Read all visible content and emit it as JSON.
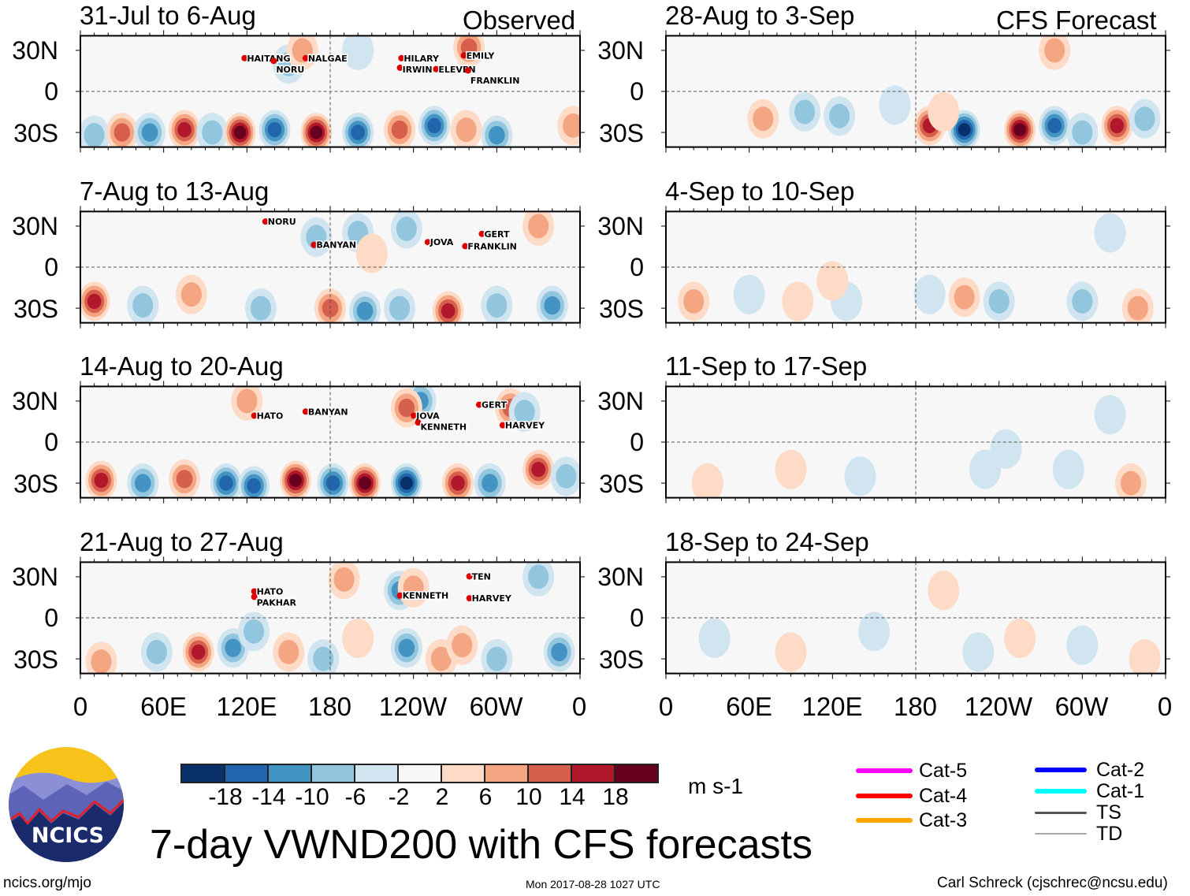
{
  "headers": {
    "observed": "Observed",
    "forecast": "CFS Forecast"
  },
  "lat_labels": [
    "30N",
    "0",
    "30S"
  ],
  "lon_labels": [
    "0",
    "60E",
    "120E",
    "180",
    "120W",
    "60W",
    "0"
  ],
  "panels": [
    {
      "title": "31-Jul to 6-Aug",
      "features": [
        [
          10,
          -32,
          -8
        ],
        [
          30,
          -30,
          12
        ],
        [
          50,
          -30,
          -14
        ],
        [
          75,
          -28,
          16
        ],
        [
          95,
          -30,
          -10
        ],
        [
          115,
          -30,
          20
        ],
        [
          140,
          -28,
          -18
        ],
        [
          170,
          -30,
          19
        ],
        [
          200,
          -30,
          -16
        ],
        [
          230,
          -28,
          14
        ],
        [
          255,
          -25,
          -16
        ],
        [
          278,
          -28,
          10
        ],
        [
          300,
          -32,
          -12
        ],
        [
          150,
          20,
          -8
        ],
        [
          160,
          30,
          10
        ],
        [
          280,
          32,
          14
        ],
        [
          200,
          30,
          -6
        ],
        [
          355,
          -25,
          10
        ]
      ],
      "storms": [
        {
          "name": "HAITANG",
          "lon": 120,
          "lat": 22
        },
        {
          "name": "NORU",
          "lon": 141,
          "lat": 20
        },
        {
          "name": "NALGAE",
          "lon": 164,
          "lat": 22
        },
        {
          "name": "HILARY",
          "lon": 233,
          "lat": 22
        },
        {
          "name": "IRWIN",
          "lon": 232,
          "lat": 15
        },
        {
          "name": "ELEVEN",
          "lon": 258,
          "lat": 14
        },
        {
          "name": "EMILY",
          "lon": 278,
          "lat": 24
        },
        {
          "name": "FRANKLIN",
          "lon": 281,
          "lat": 13
        }
      ]
    },
    {
      "title": "7-Aug to 13-Aug",
      "features": [
        [
          10,
          -25,
          16
        ],
        [
          45,
          -28,
          -10
        ],
        [
          80,
          -20,
          8
        ],
        [
          130,
          -30,
          -8
        ],
        [
          180,
          -30,
          12
        ],
        [
          205,
          -32,
          -14
        ],
        [
          230,
          -30,
          -10
        ],
        [
          265,
          -32,
          18
        ],
        [
          300,
          -28,
          -10
        ],
        [
          340,
          -28,
          -14
        ],
        [
          200,
          25,
          -10
        ],
        [
          235,
          28,
          -8
        ],
        [
          330,
          30,
          10
        ],
        [
          170,
          22,
          -10
        ],
        [
          210,
          10,
          6
        ]
      ],
      "storms": [
        {
          "name": "NORU",
          "lon": 135,
          "lat": 31
        },
        {
          "name": "BANYAN",
          "lon": 170,
          "lat": 14
        },
        {
          "name": "JOVA",
          "lon": 252,
          "lat": 16
        },
        {
          "name": "GERT",
          "lon": 291,
          "lat": 22
        },
        {
          "name": "FRANKLIN",
          "lon": 279,
          "lat": 13
        }
      ]
    },
    {
      "title": "14-Aug to 20-Aug",
      "features": [
        [
          15,
          -28,
          18
        ],
        [
          45,
          -30,
          -14
        ],
        [
          75,
          -27,
          14
        ],
        [
          105,
          -30,
          -18
        ],
        [
          125,
          -32,
          -16
        ],
        [
          155,
          -28,
          20
        ],
        [
          182,
          -30,
          -16
        ],
        [
          205,
          -30,
          19
        ],
        [
          235,
          -30,
          -20
        ],
        [
          272,
          -30,
          18
        ],
        [
          295,
          -30,
          -14
        ],
        [
          330,
          -20,
          16
        ],
        [
          350,
          -25,
          -10
        ],
        [
          245,
          30,
          -14
        ],
        [
          235,
          25,
          14
        ],
        [
          310,
          25,
          14
        ],
        [
          320,
          22,
          -10
        ],
        [
          120,
          30,
          8
        ]
      ],
      "storms": [
        {
          "name": "HATO",
          "lon": 127,
          "lat": 17
        },
        {
          "name": "BANYAN",
          "lon": 164,
          "lat": 20
        },
        {
          "name": "JOVA",
          "lon": 242,
          "lat": 17
        },
        {
          "name": "KENNETH",
          "lon": 245,
          "lat": 12
        },
        {
          "name": "GERT",
          "lon": 289,
          "lat": 25
        },
        {
          "name": "HARVEY",
          "lon": 306,
          "lat": 10
        }
      ]
    },
    {
      "title": "21-Aug to 27-Aug",
      "features": [
        [
          15,
          -32,
          10
        ],
        [
          55,
          -25,
          -10
        ],
        [
          85,
          -25,
          18
        ],
        [
          110,
          -22,
          -12
        ],
        [
          125,
          -10,
          -8
        ],
        [
          150,
          -25,
          8
        ],
        [
          175,
          -30,
          -8
        ],
        [
          200,
          -15,
          6
        ],
        [
          235,
          -22,
          -14
        ],
        [
          260,
          -30,
          10
        ],
        [
          300,
          -30,
          -10
        ],
        [
          345,
          -25,
          -14
        ],
        [
          190,
          28,
          10
        ],
        [
          230,
          20,
          -14
        ],
        [
          240,
          22,
          8
        ],
        [
          330,
          30,
          -10
        ],
        [
          275,
          -20,
          10
        ]
      ],
      "storms": [
        {
          "name": "HATO",
          "lon": 127,
          "lat": 17
        },
        {
          "name": "PAKHAR",
          "lon": 127,
          "lat": 13
        },
        {
          "name": "KENNETH",
          "lon": 232,
          "lat": 14
        },
        {
          "name": "TEN",
          "lon": 282,
          "lat": 28
        },
        {
          "name": "HARVEY",
          "lon": 282,
          "lat": 12
        }
      ]
    },
    {
      "title": "28-Aug to 3-Sep",
      "features": [
        [
          70,
          -20,
          8
        ],
        [
          100,
          -15,
          -8
        ],
        [
          125,
          -18,
          -10
        ],
        [
          165,
          -10,
          -6
        ],
        [
          190,
          -25,
          16
        ],
        [
          215,
          -28,
          -20
        ],
        [
          255,
          -28,
          20
        ],
        [
          280,
          -25,
          -18
        ],
        [
          300,
          -30,
          -10
        ],
        [
          325,
          -25,
          16
        ],
        [
          345,
          -20,
          -8
        ],
        [
          280,
          30,
          10
        ],
        [
          200,
          -15,
          6
        ]
      ],
      "storms": []
    },
    {
      "title": "4-Sep to 10-Sep",
      "features": [
        [
          20,
          -25,
          10
        ],
        [
          60,
          -20,
          -6
        ],
        [
          95,
          -25,
          6
        ],
        [
          130,
          -25,
          -6
        ],
        [
          190,
          -20,
          -6
        ],
        [
          215,
          -22,
          8
        ],
        [
          240,
          -25,
          -8
        ],
        [
          300,
          -25,
          -8
        ],
        [
          340,
          -30,
          10
        ],
        [
          120,
          -10,
          6
        ],
        [
          320,
          25,
          -6
        ]
      ],
      "storms": []
    },
    {
      "title": "11-Sep to 17-Sep",
      "features": [
        [
          30,
          -30,
          6
        ],
        [
          90,
          -20,
          4
        ],
        [
          140,
          -25,
          -5
        ],
        [
          230,
          -20,
          -6
        ],
        [
          290,
          -20,
          -5
        ],
        [
          335,
          -30,
          8
        ],
        [
          245,
          -5,
          -5
        ],
        [
          320,
          20,
          -4
        ]
      ],
      "storms": []
    },
    {
      "title": "18-Sep to 24-Sep",
      "features": [
        [
          35,
          -15,
          -4
        ],
        [
          90,
          -25,
          4
        ],
        [
          150,
          -10,
          -4
        ],
        [
          225,
          -25,
          -5
        ],
        [
          255,
          -15,
          4
        ],
        [
          300,
          -20,
          -6
        ],
        [
          345,
          -30,
          4
        ],
        [
          200,
          20,
          4
        ]
      ],
      "storms": []
    }
  ],
  "colorbar": {
    "colors": [
      "#08306b",
      "#2166ac",
      "#4393c3",
      "#92c5de",
      "#d1e5f0",
      "#f7f7f7",
      "#fddbc7",
      "#f4a582",
      "#d6604d",
      "#b2182b",
      "#67001f"
    ],
    "labels": [
      "-18",
      "-14",
      "-10",
      "-6",
      "-2",
      "2",
      "6",
      "10",
      "14",
      "18"
    ],
    "units": "m s-1"
  },
  "legend": [
    {
      "label": "Cat-5",
      "color": "#ff00ff"
    },
    {
      "label": "Cat-4",
      "color": "#ff0000"
    },
    {
      "label": "Cat-3",
      "color": "#ffa500"
    },
    {
      "label": "Cat-2",
      "color": "#0000ff"
    },
    {
      "label": "Cat-1",
      "color": "#00ffff"
    },
    {
      "label": "TS",
      "color": "#555555"
    },
    {
      "label": "TD",
      "color": "#aaaaaa"
    }
  ],
  "logo": "NCICS",
  "main_title": "7-day VWND200 with CFS forecasts",
  "footer": {
    "url": "ncics.org/mjo",
    "timestamp": "Mon 2017-08-28 1027 UTC",
    "author": "Carl Schreck (cjschrec@ncsu.edu)"
  }
}
